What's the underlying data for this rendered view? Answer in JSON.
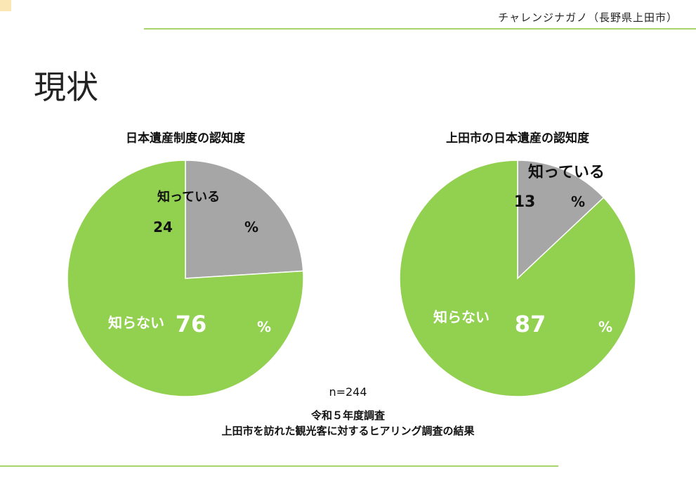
{
  "header": {
    "org": "チャレンジナガノ（長野県上田市）"
  },
  "title": "現状",
  "colors": {
    "known": "#a6a6a6",
    "unknown": "#92d050",
    "accent": "#a6d46b"
  },
  "chart_data": [
    {
      "type": "pie",
      "title": "日本遺産制度の認知度",
      "slices": [
        {
          "label": "知っている",
          "value": 24,
          "unit": "%",
          "color": "#a6a6a6"
        },
        {
          "label": "知らない",
          "value": 76,
          "unit": "%",
          "color": "#92d050"
        }
      ]
    },
    {
      "type": "pie",
      "title": "上田市の日本遺産の認知度",
      "slices": [
        {
          "label": "知っている",
          "value": 13,
          "unit": "%",
          "color": "#a6a6a6"
        },
        {
          "label": "知らない",
          "value": 87,
          "unit": "%",
          "color": "#92d050"
        }
      ]
    }
  ],
  "sample": "n=244",
  "source": {
    "line1": "令和５年度調査",
    "line2": "上田市を訪れた観光客に対するヒアリング調査の結果"
  }
}
